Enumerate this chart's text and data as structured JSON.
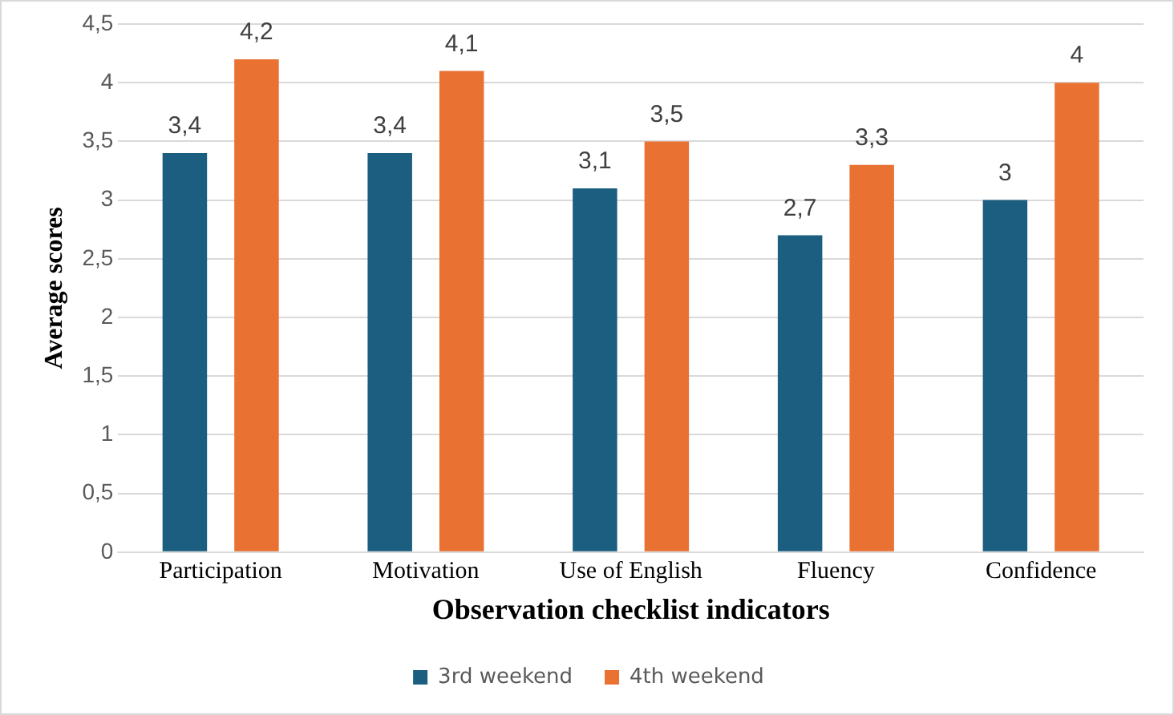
{
  "chart_data": {
    "type": "bar",
    "xlabel": "Observation checklist indicators",
    "ylabel": "Average scores",
    "categories": [
      "Participation",
      "Motivation",
      "Use of English",
      "Fluency",
      "Confidence"
    ],
    "series": [
      {
        "name": "3rd weekend",
        "color": "#1b5e80",
        "values": [
          3.4,
          3.4,
          3.1,
          2.7,
          3
        ],
        "value_labels": [
          "3,4",
          "3,4",
          "3,1",
          "2,7",
          "3"
        ]
      },
      {
        "name": "4th weekend",
        "color": "#e97132",
        "values": [
          4.2,
          4.1,
          3.5,
          3.3,
          4
        ],
        "value_labels": [
          "4,2",
          "4,1",
          "3,5",
          "3,3",
          "4"
        ]
      }
    ],
    "ylim": [
      0,
      4.5
    ],
    "yticks": [
      0,
      {
        "value": 0.5,
        "label": "0,5"
      },
      1,
      {
        "value": 1.5,
        "label": "1,5"
      },
      2,
      {
        "value": 2.5,
        "label": "2,5"
      },
      3,
      {
        "value": 3.5,
        "label": "3,5"
      },
      4,
      {
        "value": 4.5,
        "label": "4,5"
      }
    ],
    "grid": "y",
    "legend": "bottom"
  }
}
